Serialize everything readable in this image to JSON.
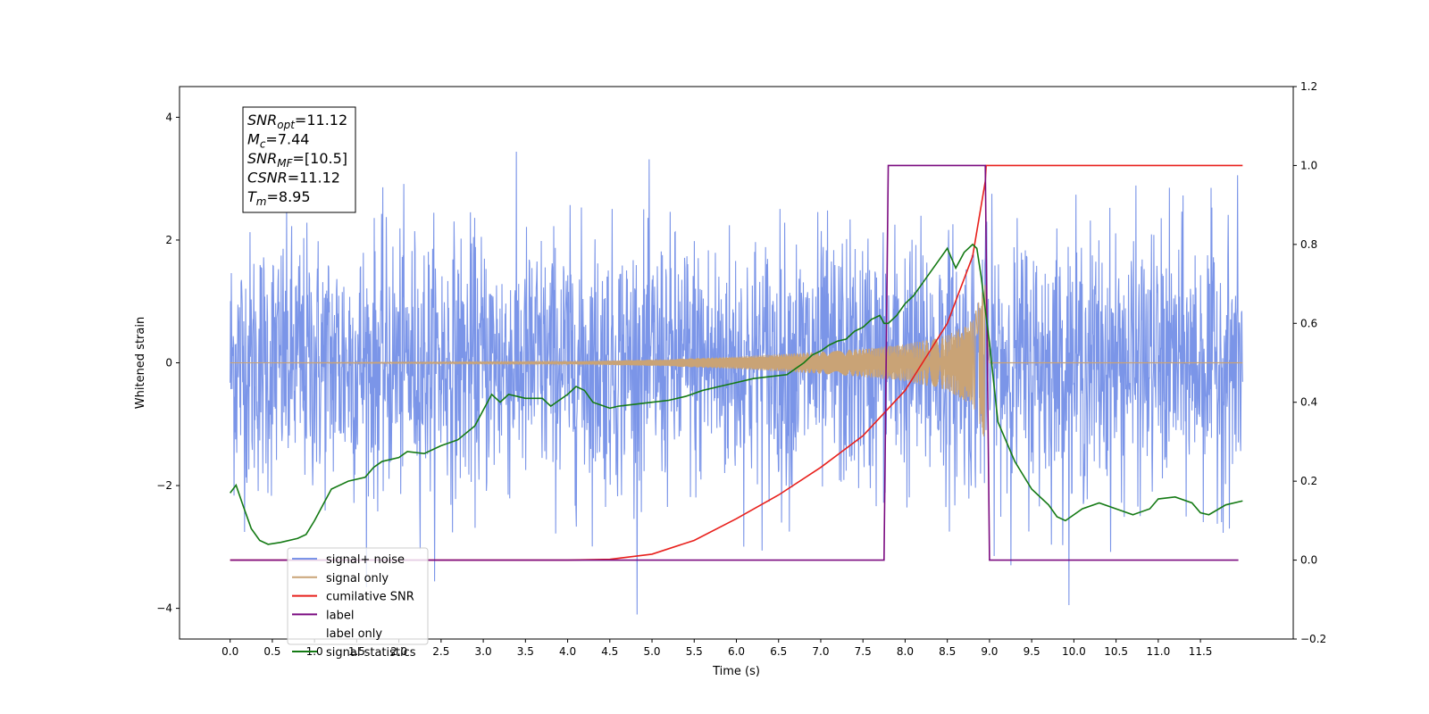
{
  "chart_data": {
    "type": "line",
    "title": "",
    "xlabel": "Time (s)",
    "ylabel": "Whitened strain",
    "xlim": [
      -0.6,
      12.6
    ],
    "ylim": [
      -4.5,
      4.5
    ],
    "y2lim": [
      -0.2,
      1.2
    ],
    "grid": false,
    "legend_position": "lower-left",
    "x_ticks": [
      "0.0",
      "0.5",
      "1.0",
      "1.5",
      "2.0",
      "2.5",
      "3.0",
      "3.5",
      "4.0",
      "4.5",
      "5.0",
      "5.5",
      "6.0",
      "6.5",
      "7.0",
      "7.5",
      "8.0",
      "8.5",
      "9.0",
      "9.5",
      "10.0",
      "10.5",
      "11.0",
      "11.5"
    ],
    "y_ticks": [
      "−4",
      "−2",
      "0",
      "2",
      "4"
    ],
    "y2_ticks": [
      "−0.2",
      "0.0",
      "0.2",
      "0.4",
      "0.6",
      "0.8",
      "1.0",
      "1.2"
    ],
    "annotation": {
      "lines": [
        {
          "base": "SNR",
          "sub": "opt",
          "value": "=11.12"
        },
        {
          "base": "M",
          "sub": "c",
          "value": "=7.44"
        },
        {
          "base": "SNR",
          "sub": "MF",
          "value": "=[10.5]"
        },
        {
          "base": "CSNR",
          "sub": "",
          "value": "=11.12"
        },
        {
          "base": "T",
          "sub": "m",
          "value": "=8.95"
        }
      ]
    },
    "series": [
      {
        "name": "signal+ noise",
        "color": "#7b95e8",
        "axis": "left",
        "kind": "noise",
        "x_range": [
          0,
          12
        ],
        "noise_std": 1.05,
        "noise_extent": [
          -4.1,
          4.1
        ]
      },
      {
        "name": "signal only",
        "color": "#c9a376",
        "axis": "left",
        "kind": "chirp",
        "x_range": [
          0,
          9.0
        ],
        "merger_time": 8.95,
        "peak_amplitude": 1.3,
        "envelope_points": [
          [
            0.0,
            0.0
          ],
          [
            4.0,
            0.02
          ],
          [
            5.0,
            0.05
          ],
          [
            6.0,
            0.1
          ],
          [
            7.0,
            0.18
          ],
          [
            7.5,
            0.23
          ],
          [
            8.0,
            0.3
          ],
          [
            8.5,
            0.45
          ],
          [
            8.8,
            0.7
          ],
          [
            8.95,
            1.3
          ],
          [
            9.0,
            0.0
          ]
        ]
      },
      {
        "name": "cumilative SNR",
        "color": "#e8201c",
        "axis": "right",
        "points": [
          [
            0.0,
            0.0
          ],
          [
            4.0,
            0.0
          ],
          [
            4.5,
            0.002
          ],
          [
            5.0,
            0.015
          ],
          [
            5.5,
            0.05
          ],
          [
            6.0,
            0.105
          ],
          [
            6.5,
            0.165
          ],
          [
            7.0,
            0.235
          ],
          [
            7.5,
            0.315
          ],
          [
            8.0,
            0.43
          ],
          [
            8.5,
            0.6
          ],
          [
            8.8,
            0.77
          ],
          [
            8.95,
            0.96
          ],
          [
            8.96,
            1.0
          ],
          [
            12.0,
            1.0
          ]
        ]
      },
      {
        "name": "label",
        "color": "#7b0b80",
        "axis": "right",
        "points": [
          [
            0.0,
            0.0
          ],
          [
            7.75,
            0.0
          ],
          [
            7.8,
            1.0
          ],
          [
            8.95,
            1.0
          ],
          [
            9.0,
            0.0
          ],
          [
            11.95,
            0.0
          ]
        ]
      },
      {
        "name": "label only",
        "color": "#ffffff",
        "axis": "right",
        "points": []
      },
      {
        "name": "signal statistics",
        "color": "#147a14",
        "axis": "right",
        "points": [
          [
            0.0,
            0.17
          ],
          [
            0.07,
            0.19
          ],
          [
            0.15,
            0.14
          ],
          [
            0.25,
            0.08
          ],
          [
            0.35,
            0.05
          ],
          [
            0.45,
            0.04
          ],
          [
            0.6,
            0.045
          ],
          [
            0.8,
            0.055
          ],
          [
            0.9,
            0.065
          ],
          [
            1.0,
            0.1
          ],
          [
            1.1,
            0.14
          ],
          [
            1.2,
            0.18
          ],
          [
            1.4,
            0.2
          ],
          [
            1.6,
            0.21
          ],
          [
            1.7,
            0.235
          ],
          [
            1.8,
            0.25
          ],
          [
            2.0,
            0.26
          ],
          [
            2.1,
            0.275
          ],
          [
            2.3,
            0.27
          ],
          [
            2.5,
            0.29
          ],
          [
            2.7,
            0.305
          ],
          [
            2.9,
            0.34
          ],
          [
            3.0,
            0.38
          ],
          [
            3.1,
            0.42
          ],
          [
            3.2,
            0.4
          ],
          [
            3.3,
            0.42
          ],
          [
            3.5,
            0.41
          ],
          [
            3.7,
            0.41
          ],
          [
            3.8,
            0.39
          ],
          [
            4.0,
            0.42
          ],
          [
            4.1,
            0.44
          ],
          [
            4.2,
            0.43
          ],
          [
            4.3,
            0.4
          ],
          [
            4.5,
            0.385
          ],
          [
            4.6,
            0.39
          ],
          [
            4.8,
            0.395
          ],
          [
            5.0,
            0.4
          ],
          [
            5.2,
            0.405
          ],
          [
            5.4,
            0.415
          ],
          [
            5.6,
            0.43
          ],
          [
            5.8,
            0.44
          ],
          [
            6.0,
            0.45
          ],
          [
            6.2,
            0.46
          ],
          [
            6.4,
            0.465
          ],
          [
            6.6,
            0.47
          ],
          [
            6.8,
            0.5
          ],
          [
            6.9,
            0.52
          ],
          [
            7.0,
            0.53
          ],
          [
            7.1,
            0.545
          ],
          [
            7.2,
            0.555
          ],
          [
            7.3,
            0.56
          ],
          [
            7.4,
            0.58
          ],
          [
            7.5,
            0.59
          ],
          [
            7.6,
            0.61
          ],
          [
            7.7,
            0.62
          ],
          [
            7.75,
            0.6
          ],
          [
            7.8,
            0.6
          ],
          [
            7.9,
            0.62
          ],
          [
            8.0,
            0.65
          ],
          [
            8.1,
            0.67
          ],
          [
            8.2,
            0.7
          ],
          [
            8.3,
            0.73
          ],
          [
            8.4,
            0.76
          ],
          [
            8.5,
            0.79
          ],
          [
            8.6,
            0.74
          ],
          [
            8.7,
            0.78
          ],
          [
            8.8,
            0.8
          ],
          [
            8.85,
            0.79
          ],
          [
            8.9,
            0.72
          ],
          [
            9.0,
            0.55
          ],
          [
            9.1,
            0.35
          ],
          [
            9.3,
            0.25
          ],
          [
            9.5,
            0.18
          ],
          [
            9.7,
            0.14
          ],
          [
            9.8,
            0.11
          ],
          [
            9.9,
            0.1
          ],
          [
            10.1,
            0.13
          ],
          [
            10.3,
            0.145
          ],
          [
            10.5,
            0.13
          ],
          [
            10.7,
            0.115
          ],
          [
            10.9,
            0.13
          ],
          [
            11.0,
            0.155
          ],
          [
            11.2,
            0.16
          ],
          [
            11.4,
            0.145
          ],
          [
            11.5,
            0.12
          ],
          [
            11.6,
            0.115
          ],
          [
            11.8,
            0.14
          ],
          [
            12.0,
            0.15
          ]
        ]
      }
    ]
  }
}
